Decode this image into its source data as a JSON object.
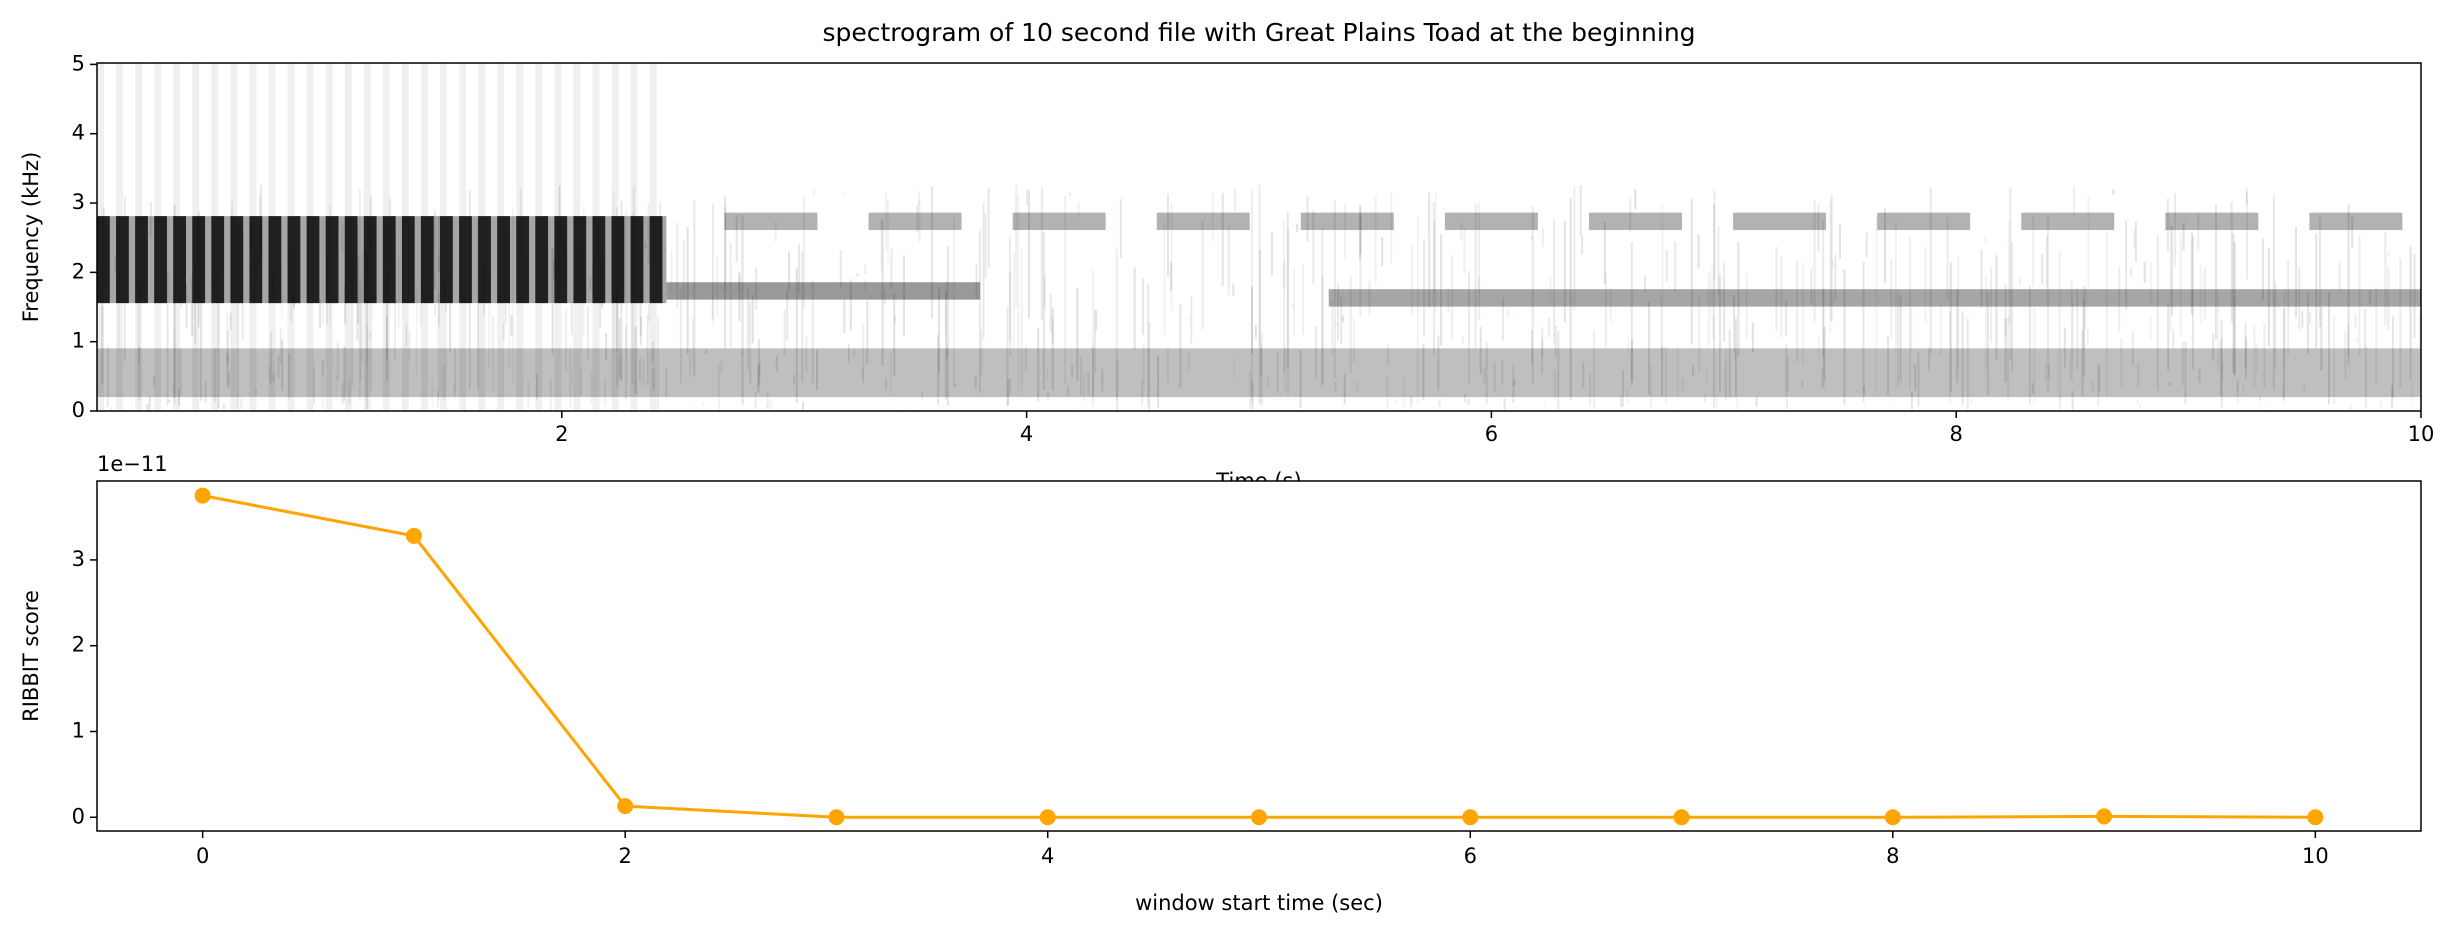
{
  "chart_data": [
    {
      "type": "spectrogram",
      "title": "spectrogram of 10 second file with Great Plains Toad at the beginning",
      "x_label": "Time (s)",
      "y_label": "Frequency (kHz)",
      "xlim": [
        0,
        10
      ],
      "xticks": [
        2,
        4,
        6,
        8,
        10
      ],
      "ylim": [
        0,
        5.02
      ],
      "yticks": [
        0,
        1,
        2,
        3,
        4,
        5
      ]
    },
    {
      "type": "line",
      "x_label": "window start time (sec)",
      "y_label": "RIBBIT score",
      "offset_label": "1e−11",
      "x": [
        0,
        1,
        2,
        3,
        4,
        5,
        6,
        7,
        8,
        9,
        10
      ],
      "values": [
        3.75,
        3.28,
        0.13,
        0,
        0,
        0,
        0,
        0,
        0,
        0.01,
        0
      ],
      "color": "#ffa500",
      "xlim": [
        -0.5,
        10.5
      ],
      "xticks": [
        0,
        2,
        4,
        6,
        8,
        10
      ],
      "ylim": [
        -0.16,
        3.92
      ],
      "yticks": [
        0,
        1,
        2,
        3
      ]
    }
  ]
}
